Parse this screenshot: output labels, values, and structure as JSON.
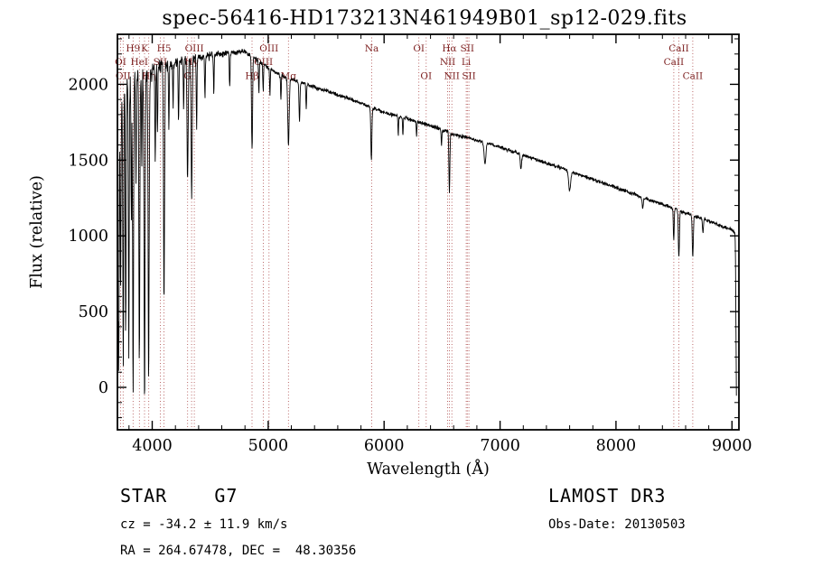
{
  "title": "spec-56416-HD173213N461949B01_sp12-029.fits",
  "annotations": {
    "class_label": "STAR    G7",
    "survey": "LAMOST DR3",
    "cz": "cz = -34.2 ± 11.9 km/s",
    "obs_date": "Obs-Date: 20130503",
    "coords": "RA = 264.67478, DEC =  48.30356"
  },
  "chart_data": {
    "type": "line",
    "title": "spec-56416-HD173213N461949B01_sp12-029.fits",
    "xlabel": "Wavelength (Å)",
    "ylabel": "Flux (relative)",
    "xlim": [
      3700,
      9060
    ],
    "ylim": [
      -280,
      2330
    ],
    "x_ticks": [
      4000,
      5000,
      6000,
      7000,
      8000,
      9000
    ],
    "y_ticks": [
      0,
      500,
      1000,
      1500,
      2000
    ],
    "grid": false,
    "legend": "none",
    "line_color": "#000000",
    "marker_line_color": "#aa4444",
    "marker_label_color": "#7c1f1f",
    "spectral_lines": [
      {
        "label": "H9",
        "wavelength": 3835,
        "row": 0
      },
      {
        "label": "K",
        "wavelength": 3934,
        "row": 0
      },
      {
        "label": "H5",
        "wavelength": 4102,
        "row": 0
      },
      {
        "label": "OIII",
        "wavelength": 4363,
        "row": 0
      },
      {
        "label": "OIII",
        "wavelength": 5007,
        "row": 0
      },
      {
        "label": "Na",
        "wavelength": 5893,
        "row": 0
      },
      {
        "label": "OI",
        "wavelength": 6300,
        "row": 0
      },
      {
        "label": "Hα",
        "wavelength": 6563,
        "row": 0
      },
      {
        "label": "SII",
        "wavelength": 6717,
        "row": 0
      },
      {
        "label": "CaII",
        "wavelength": 8542,
        "row": 0
      },
      {
        "label": "OI",
        "wavelength": 3727,
        "row": 1
      },
      {
        "label": "HeI",
        "wavelength": 3889,
        "row": 1
      },
      {
        "label": "SII",
        "wavelength": 4069,
        "row": 1
      },
      {
        "label": "Hγ",
        "wavelength": 4340,
        "row": 1
      },
      {
        "label": "OIII",
        "wavelength": 4959,
        "row": 1
      },
      {
        "label": "NII",
        "wavelength": 6548,
        "row": 1
      },
      {
        "label": "Li",
        "wavelength": 6708,
        "row": 1
      },
      {
        "label": "CaII",
        "wavelength": 8498,
        "row": 1
      },
      {
        "label": "OII",
        "wavelength": 3749,
        "row": 2
      },
      {
        "label": "Hη",
        "wavelength": 3970,
        "row": 2
      },
      {
        "label": "G",
        "wavelength": 4305,
        "row": 2
      },
      {
        "label": "Hβ",
        "wavelength": 4861,
        "row": 2
      },
      {
        "label": "Mg",
        "wavelength": 5175,
        "row": 2
      },
      {
        "label": "OI",
        "wavelength": 6363,
        "row": 2
      },
      {
        "label": "NII",
        "wavelength": 6584,
        "row": 2
      },
      {
        "label": "SII",
        "wavelength": 6731,
        "row": 2
      },
      {
        "label": "CaII",
        "wavelength": 8662,
        "row": 2
      }
    ],
    "continuum": [
      [
        3700,
        1780
      ],
      [
        3760,
        1950
      ],
      [
        3830,
        2030
      ],
      [
        3900,
        2070
      ],
      [
        3980,
        2090
      ],
      [
        4070,
        2110
      ],
      [
        4200,
        2150
      ],
      [
        4350,
        2170
      ],
      [
        4500,
        2190
      ],
      [
        4650,
        2210
      ],
      [
        4800,
        2215
      ],
      [
        4900,
        2160
      ],
      [
        5000,
        2110
      ],
      [
        5100,
        2060
      ],
      [
        5250,
        2020
      ],
      [
        5400,
        1980
      ],
      [
        5550,
        1945
      ],
      [
        5700,
        1905
      ],
      [
        5850,
        1860
      ],
      [
        6000,
        1815
      ],
      [
        6150,
        1785
      ],
      [
        6300,
        1750
      ],
      [
        6450,
        1715
      ],
      [
        6600,
        1670
      ],
      [
        6750,
        1640
      ],
      [
        6900,
        1610
      ],
      [
        7100,
        1560
      ],
      [
        7300,
        1505
      ],
      [
        7500,
        1455
      ],
      [
        7700,
        1400
      ],
      [
        7900,
        1345
      ],
      [
        8100,
        1290
      ],
      [
        8300,
        1235
      ],
      [
        8500,
        1180
      ],
      [
        8700,
        1125
      ],
      [
        8900,
        1070
      ],
      [
        9000,
        1040
      ],
      [
        9040,
        1015
      ]
    ],
    "absorption_features": [
      [
        3705,
        1400,
        3
      ],
      [
        3712,
        1500,
        3
      ],
      [
        3727,
        1250,
        3.5
      ],
      [
        3750,
        1850,
        3.5
      ],
      [
        3771,
        1600,
        3.5
      ],
      [
        3798,
        1750,
        3.5
      ],
      [
        3820,
        900,
        3
      ],
      [
        3835,
        2050,
        4
      ],
      [
        3860,
        700,
        3
      ],
      [
        3889,
        1900,
        4
      ],
      [
        3910,
        600,
        3
      ],
      [
        3934,
        2150,
        4.5
      ],
      [
        3969,
        2050,
        4.5
      ],
      [
        4026,
        650,
        3
      ],
      [
        4045,
        400,
        3
      ],
      [
        4102,
        1550,
        4.5
      ],
      [
        4144,
        450,
        3
      ],
      [
        4180,
        300,
        3
      ],
      [
        4227,
        420,
        3
      ],
      [
        4271,
        320,
        3
      ],
      [
        4305,
        780,
        5
      ],
      [
        4340,
        920,
        4.5
      ],
      [
        4383,
        480,
        3
      ],
      [
        4455,
        280,
        3
      ],
      [
        4531,
        260,
        3
      ],
      [
        4668,
        230,
        3
      ],
      [
        4861,
        620,
        4.5
      ],
      [
        4920,
        210,
        3
      ],
      [
        4957,
        180,
        3
      ],
      [
        5015,
        170,
        3
      ],
      [
        5110,
        160,
        3
      ],
      [
        5175,
        440,
        6
      ],
      [
        5270,
        260,
        4
      ],
      [
        5328,
        160,
        3
      ],
      [
        5890,
        350,
        4.5
      ],
      [
        6122,
        130,
        3
      ],
      [
        6162,
        110,
        3
      ],
      [
        6280,
        90,
        3
      ],
      [
        6495,
        110,
        3
      ],
      [
        6563,
        400,
        4
      ],
      [
        6870,
        140,
        8
      ],
      [
        7180,
        90,
        6
      ],
      [
        7600,
        130,
        9
      ],
      [
        8230,
        80,
        5
      ],
      [
        8498,
        200,
        4
      ],
      [
        8542,
        310,
        4.5
      ],
      [
        8662,
        280,
        4.5
      ],
      [
        8750,
        90,
        4
      ],
      [
        9040,
        1150,
        5
      ]
    ],
    "noise": {
      "seed": 20130503,
      "base": 13,
      "blue_extra": 125,
      "blue_scale": 380
    },
    "sampling_step": 2.5,
    "sampling_range": [
      3703,
      9040
    ]
  }
}
